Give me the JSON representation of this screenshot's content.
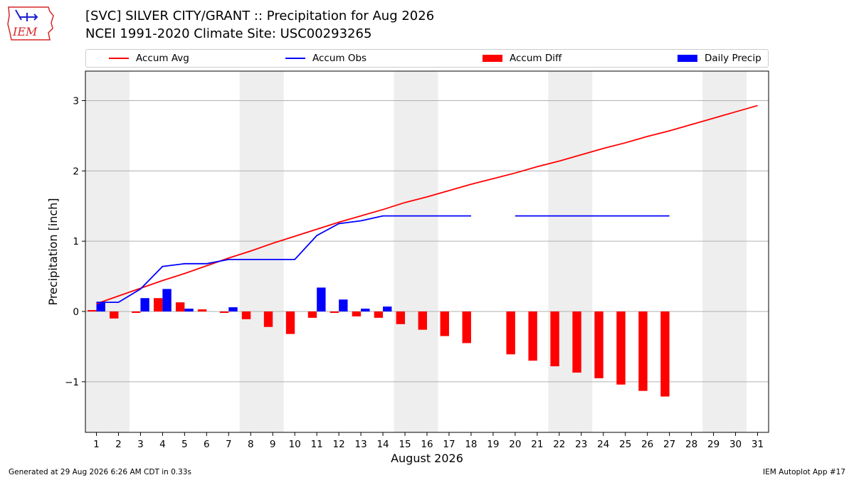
{
  "logo": {
    "text": "IEM",
    "color": "#d62728",
    "accent": "#1f1fd0"
  },
  "header": {
    "title_line1": "[SVC] SILVER CITY/GRANT :: Precipitation for Aug 2026",
    "title_line2": "NCEI 1991-2020 Climate Site: USC00293265"
  },
  "legend": {
    "placement": "top",
    "items": [
      {
        "label": "Accum Avg",
        "kind": "line",
        "color": "#ff0000"
      },
      {
        "label": "Accum Obs",
        "kind": "line",
        "color": "#0000ff"
      },
      {
        "label": "Accum Diff",
        "kind": "bar",
        "color": "#ff0000"
      },
      {
        "label": "Daily Precip",
        "kind": "bar",
        "color": "#0000ff"
      }
    ]
  },
  "chart_data": {
    "type": "bar",
    "xlabel": "August 2026",
    "ylabel": "Precipitation [inch]",
    "xlim": [
      0.5,
      31.5
    ],
    "ylim": [
      -1.72,
      3.42
    ],
    "yticks": [
      -1,
      0,
      1,
      2,
      3
    ],
    "ytick_labels": [
      "−1",
      "0",
      "1",
      "2",
      "3"
    ],
    "x": [
      1,
      2,
      3,
      4,
      5,
      6,
      7,
      8,
      9,
      10,
      11,
      12,
      13,
      14,
      15,
      16,
      17,
      18,
      19,
      20,
      21,
      22,
      23,
      24,
      25,
      26,
      27,
      28,
      29,
      30,
      31
    ],
    "grid": "horizontal",
    "weekend_shading": [
      [
        0.5,
        2.5
      ],
      [
        7.5,
        9.5
      ],
      [
        14.5,
        16.5
      ],
      [
        21.5,
        23.5
      ],
      [
        28.5,
        30.5
      ]
    ],
    "shade_color": "#eeeeee",
    "series": [
      {
        "name": "Accum Avg",
        "kind": "line",
        "color": "#ff0000",
        "values": [
          0.11,
          0.22,
          0.33,
          0.44,
          0.54,
          0.65,
          0.76,
          0.86,
          0.97,
          1.07,
          1.17,
          1.27,
          1.36,
          1.45,
          1.55,
          1.63,
          1.72,
          1.81,
          1.89,
          1.97,
          2.06,
          2.14,
          2.23,
          2.32,
          2.4,
          2.49,
          2.57,
          2.66,
          2.75,
          2.84,
          2.93
        ]
      },
      {
        "name": "Accum Obs",
        "kind": "line",
        "color": "#0000ff",
        "values": [
          0.13,
          0.13,
          0.32,
          0.64,
          0.68,
          0.68,
          0.74,
          0.74,
          0.74,
          0.74,
          1.08,
          1.25,
          1.29,
          1.36,
          1.36,
          1.36,
          1.36,
          1.36,
          null,
          1.36,
          1.36,
          1.36,
          1.36,
          1.36,
          1.36,
          1.36,
          1.36,
          null,
          null,
          null,
          null
        ]
      },
      {
        "name": "Accum Diff",
        "kind": "bar",
        "color": "#ff0000",
        "values": [
          0.02,
          -0.1,
          -0.02,
          0.19,
          0.13,
          0.03,
          -0.02,
          -0.11,
          -0.22,
          -0.32,
          -0.09,
          -0.02,
          -0.07,
          -0.09,
          -0.18,
          -0.26,
          -0.35,
          -0.45,
          null,
          -0.61,
          -0.7,
          -0.78,
          -0.87,
          -0.95,
          -1.04,
          -1.13,
          -1.21,
          null,
          null,
          null,
          null
        ]
      },
      {
        "name": "Daily Precip",
        "kind": "bar",
        "color": "#0000ff",
        "values": [
          0.13,
          0.0,
          0.19,
          0.32,
          0.04,
          0.0,
          0.06,
          0.0,
          0.0,
          0.0,
          0.34,
          0.17,
          0.04,
          0.07,
          0.0,
          0.0,
          0.0,
          0.0,
          null,
          0.0,
          0.0,
          0.0,
          0.0,
          0.0,
          0.0,
          0.0,
          0.0,
          null,
          null,
          null,
          null
        ]
      }
    ]
  },
  "footer": {
    "left": "Generated at 29 Aug 2026 6:26 AM CDT in 0.33s",
    "right": "IEM Autoplot App #17"
  }
}
